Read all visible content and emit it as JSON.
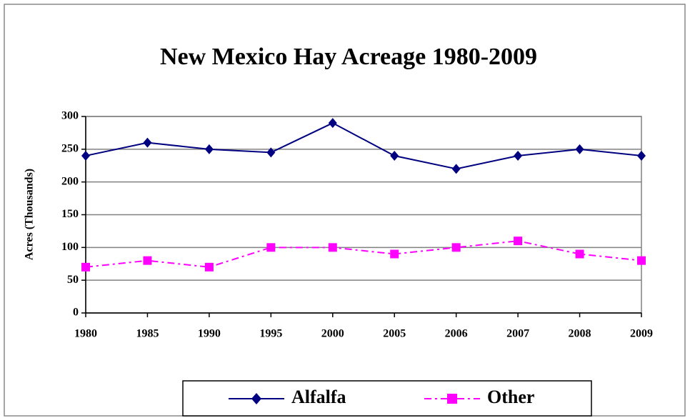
{
  "chart_data": {
    "type": "line",
    "title": "New Mexico Hay Acreage  1980-2009",
    "y_label": "Acres (Thousands)",
    "categories": [
      "1980",
      "1985",
      "1990",
      "1995",
      "2000",
      "2005",
      "2006",
      "2007",
      "2008",
      "2009"
    ],
    "series": [
      {
        "name": "Alfalfa",
        "color": "#000080",
        "marker": "diamond",
        "line_style": "solid",
        "values": [
          240,
          260,
          250,
          245,
          290,
          240,
          220,
          240,
          250,
          240
        ]
      },
      {
        "name": "Other",
        "color": "#ff00ff",
        "marker": "square",
        "line_style": "dashdot",
        "values": [
          70,
          80,
          70,
          100,
          100,
          90,
          100,
          110,
          90,
          80
        ]
      }
    ],
    "ylim": [
      0,
      300
    ],
    "yticks": [
      0,
      50,
      100,
      150,
      200,
      250,
      300
    ],
    "grid": true,
    "legend": "bottom"
  }
}
